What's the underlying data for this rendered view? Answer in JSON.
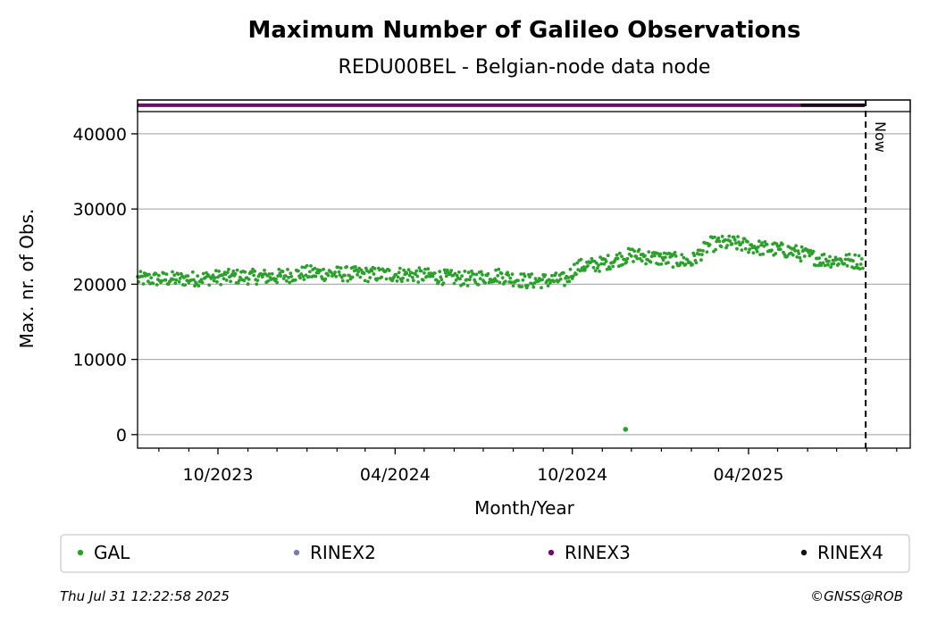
{
  "chart_data": {
    "type": "scatter",
    "title": "Maximum Number of Galileo Observations",
    "subtitle": "REDU00BEL - Belgian-node data node",
    "xlabel": "Month/Year",
    "ylabel": "Max. nr. of Obs.",
    "x_range": [
      "2023-07-10",
      "2025-09-15"
    ],
    "ylim": [
      -1800,
      44500
    ],
    "x_tick_labels": [
      {
        "date": "2023-10-01",
        "label": "10/2023"
      },
      {
        "date": "2024-04-01",
        "label": "04/2024"
      },
      {
        "date": "2024-10-01",
        "label": "10/2024"
      },
      {
        "date": "2025-04-01",
        "label": "04/2025"
      }
    ],
    "x_minor_ticks": [
      "2023-08-01",
      "2023-09-01",
      "2023-11-01",
      "2023-12-01",
      "2024-01-01",
      "2024-02-01",
      "2024-03-01",
      "2024-05-01",
      "2024-06-01",
      "2024-07-01",
      "2024-08-01",
      "2024-09-01",
      "2024-11-01",
      "2024-12-01",
      "2025-01-01",
      "2025-02-01",
      "2025-03-01",
      "2025-05-01",
      "2025-06-01",
      "2025-07-01",
      "2025-08-01",
      "2025-09-01"
    ],
    "y_ticks": [
      0,
      10000,
      20000,
      30000,
      40000
    ],
    "grid": "horizontal",
    "now_line": {
      "date": "2025-07-31",
      "label": "Now"
    },
    "gal_trend": [
      {
        "date": "2023-07-10",
        "value": 20700
      },
      {
        "date": "2023-09-01",
        "value": 20700
      },
      {
        "date": "2023-10-15",
        "value": 21000
      },
      {
        "date": "2023-12-01",
        "value": 21000
      },
      {
        "date": "2024-01-01",
        "value": 21500
      },
      {
        "date": "2024-03-01",
        "value": 21300
      },
      {
        "date": "2024-04-15",
        "value": 21300
      },
      {
        "date": "2024-05-15",
        "value": 21000
      },
      {
        "date": "2024-06-15",
        "value": 20700
      },
      {
        "date": "2024-07-15",
        "value": 21200
      },
      {
        "date": "2024-08-15",
        "value": 20400
      },
      {
        "date": "2024-09-25",
        "value": 20600
      },
      {
        "date": "2024-10-05",
        "value": 22300
      },
      {
        "date": "2024-11-01",
        "value": 22700
      },
      {
        "date": "2024-12-01",
        "value": 23900
      },
      {
        "date": "2025-01-01",
        "value": 23400
      },
      {
        "date": "2025-02-01",
        "value": 23000
      },
      {
        "date": "2025-02-20",
        "value": 25300
      },
      {
        "date": "2025-03-15",
        "value": 25500
      },
      {
        "date": "2025-04-15",
        "value": 24800
      },
      {
        "date": "2025-05-15",
        "value": 24400
      },
      {
        "date": "2025-06-15",
        "value": 23300
      },
      {
        "date": "2025-07-28",
        "value": 23000
      }
    ],
    "gal_jitter": 1000,
    "gal_outlier": {
      "date": "2024-11-25",
      "value": 700
    },
    "rinex_bar": {
      "level": 43800,
      "segments": [
        {
          "series": "RINEX3",
          "start": "2023-07-10",
          "end": "2025-05-25"
        },
        {
          "series": "RINEX4",
          "start": "2025-05-25",
          "end": "2025-07-30"
        }
      ]
    },
    "legend": [
      {
        "name": "GAL",
        "color": "#2ca02c"
      },
      {
        "name": "RINEX2",
        "color": "#7b7bb3"
      },
      {
        "name": "RINEX3",
        "color": "#6b0f6b"
      },
      {
        "name": "RINEX4",
        "color": "#1a0a1a"
      }
    ],
    "legend_placement": "bottom"
  },
  "footer": {
    "timestamp": "Thu Jul 31 12:22:58 2025",
    "credit": "©GNSS@ROB"
  }
}
